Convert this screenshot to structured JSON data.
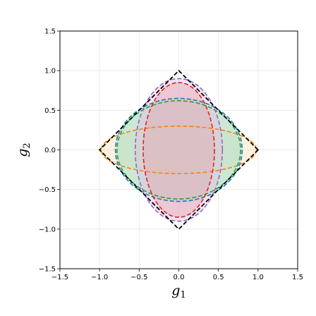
{
  "chart_data": {
    "type": "area",
    "title": "",
    "xlabel": "g",
    "xlabel_sub": "1",
    "ylabel": "g",
    "ylabel_sub": "2",
    "xlim": [
      -1.5,
      1.5
    ],
    "ylim": [
      -1.5,
      1.5
    ],
    "xticks": [
      -1.5,
      -1.0,
      -0.5,
      0.0,
      0.5,
      1.0,
      1.5
    ],
    "yticks": [
      -1.5,
      -1.0,
      -0.5,
      0.0,
      0.5,
      1.0,
      1.5
    ],
    "xtick_labels": [
      "−1.5",
      "−1.0",
      "−0.5",
      "0.0",
      "0.5",
      "1.0",
      "1.5"
    ],
    "ytick_labels": [
      "−1.5",
      "−1.0",
      "−0.5",
      "0.0",
      "0.5",
      "1.0",
      "1.5"
    ],
    "grid": true,
    "series": [
      {
        "shape": "diamond",
        "half_width": 1.0,
        "half_height": 1.0,
        "color": "#000000",
        "fill": false
      },
      {
        "shape": "ellipse",
        "center": [
          0.0,
          0.0
        ],
        "rx": 0.98,
        "ry": 0.3,
        "color": "#ff7f0e",
        "fill_color": "#fde0b8"
      },
      {
        "shape": "ellipse",
        "center": [
          0.0,
          0.0
        ],
        "rx": 0.8,
        "ry": 0.65,
        "color": "#1f77b4",
        "fill_color": "#a8d8d8"
      },
      {
        "shape": "ellipse",
        "center": [
          0.0,
          0.0
        ],
        "rx": 0.78,
        "ry": 0.62,
        "color": "#2ca02c",
        "fill_color": "#bde3bd"
      },
      {
        "shape": "ellipse",
        "center": [
          0.0,
          0.0
        ],
        "rx": 0.55,
        "ry": 0.9,
        "color": "#9467bd",
        "fill_color": "#e5bfe0"
      },
      {
        "shape": "ellipse",
        "center": [
          0.0,
          0.0
        ],
        "rx": 0.45,
        "ry": 0.85,
        "color": "#d62728",
        "fill_color": "#e2a8b0"
      }
    ]
  }
}
